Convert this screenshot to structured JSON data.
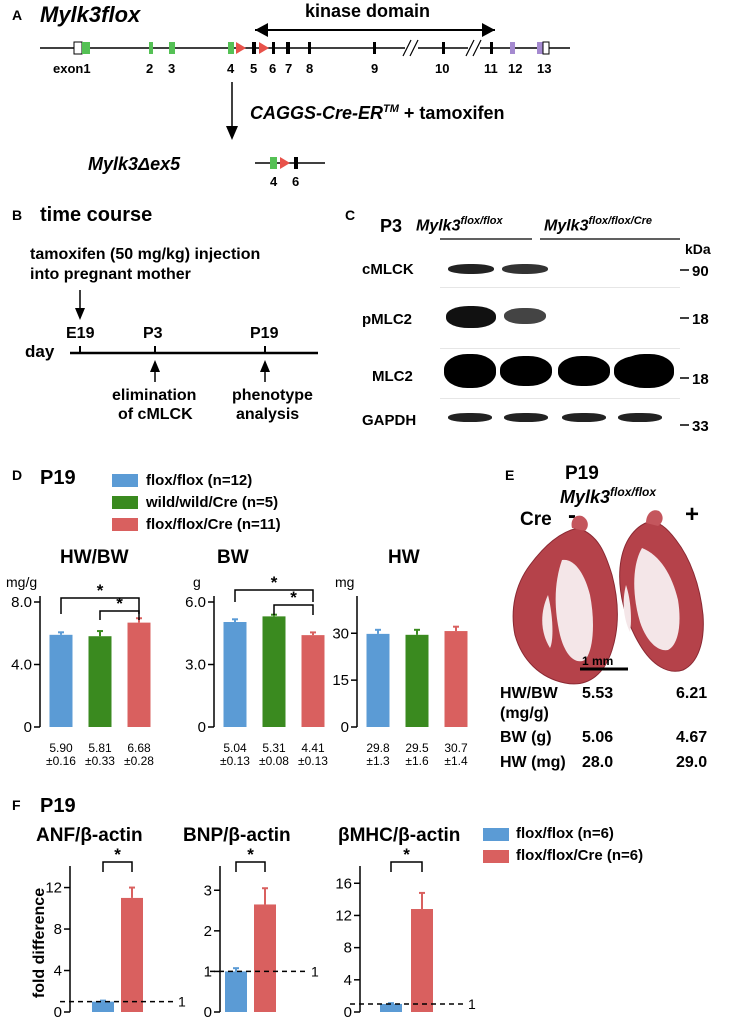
{
  "colors": {
    "flox_flox": "#5b9bd5",
    "wild_wild_cre": "#3a8a1f",
    "flox_flox_cre": "#d9605f",
    "exon_green": "#55c155",
    "exon_purple": "#a58ad0",
    "loxp_red": "#e8524a"
  },
  "panelA": {
    "label": "A",
    "title": "Mylk3flox",
    "domain_label": "kinase domain",
    "exon1_label": "exon1",
    "exon_numbers": [
      "2",
      "3",
      "4",
      "5",
      "6",
      "7",
      "8",
      "9",
      "10",
      "11",
      "12",
      "13"
    ],
    "cre_text": "CAGGS-Cre-ER",
    "cre_sup": "TM",
    "plus_text": "+  tamoxifen",
    "result_title": "Mylk3Δex5",
    "result_exons": [
      "4",
      "6"
    ]
  },
  "panelB": {
    "label": "B",
    "title": "time course",
    "injection_line1": "tamoxifen (50 mg/kg) injection",
    "injection_line2": "into pregnant mother",
    "axis_label": "day",
    "timepoints": [
      "E19",
      "P3",
      "P19"
    ],
    "event1_line1": "elimination",
    "event1_line2": "of cMLCK",
    "event2_line1": "phenotype",
    "event2_line2": "analysis"
  },
  "panelC": {
    "label": "C",
    "stage": "P3",
    "group1_base": "Mylk3",
    "group1_sup": "flox/flox",
    "group2_base": "Mylk3",
    "group2_sup": "flox/flox/Cre",
    "unit": "kDa",
    "rows": [
      {
        "name": "cMLCK",
        "kda": "90"
      },
      {
        "name": "pMLC2",
        "kda": "18"
      },
      {
        "name": "MLC2",
        "kda": "18"
      },
      {
        "name": "GAPDH",
        "kda": "33"
      }
    ]
  },
  "panelD": {
    "label": "D",
    "stage": "P19",
    "legend": [
      "flox/flox (n=12)",
      "wild/wild/Cre (n=5)",
      "flox/flox/Cre (n=11)"
    ],
    "stars": "*",
    "stat_lines": {
      "hwbw": [
        "5.90\n±0.16",
        "5.81\n±0.33",
        "6.68\n±0.28"
      ],
      "bw": [
        "5.04\n±0.13",
        "5.31\n±0.08",
        "4.41\n±0.13"
      ],
      "hw": [
        "29.8\n±1.3",
        "29.5\n±1.6",
        "30.7\n±1.4"
      ]
    }
  },
  "panelE": {
    "label": "E",
    "stage": "P19",
    "genotype_base": "Mylk3",
    "genotype_sup": "flox/flox",
    "cre_label": "Cre",
    "minus": "-",
    "plus": "+",
    "scale_bar": "1 mm",
    "table": [
      {
        "metric": "HW/BW",
        "minus": "5.53",
        "plus": "6.21"
      },
      {
        "metric": "(mg/g)",
        "minus": "",
        "plus": ""
      },
      {
        "metric": "BW (g)",
        "minus": "5.06",
        "plus": "4.67"
      },
      {
        "metric": "HW (mg)",
        "minus": "28.0",
        "plus": "29.0"
      }
    ]
  },
  "panelF": {
    "label": "F",
    "stage": "P19",
    "y_label": "fold difference",
    "legend": [
      "flox/flox (n=6)",
      "flox/flox/Cre (n=6)"
    ],
    "ref_label": "1"
  },
  "chart_data": [
    {
      "type": "bar",
      "title": "HW/BW",
      "ylabel": "mg/g",
      "categories": [
        "flox/flox",
        "wild/wild/Cre",
        "flox/flox/Cre"
      ],
      "values": [
        5.9,
        5.81,
        6.68
      ],
      "errors": [
        0.16,
        0.33,
        0.28
      ],
      "ylim": [
        0,
        8
      ],
      "yticks": [
        "8.0",
        "4.0",
        "0"
      ],
      "significance": [
        [
          0,
          2
        ],
        [
          1,
          2
        ]
      ]
    },
    {
      "type": "bar",
      "title": "BW",
      "ylabel": "g",
      "categories": [
        "flox/flox",
        "wild/wild/Cre",
        "flox/flox/Cre"
      ],
      "values": [
        5.04,
        5.31,
        4.41
      ],
      "errors": [
        0.13,
        0.08,
        0.13
      ],
      "ylim": [
        0,
        6
      ],
      "yticks": [
        "6.0",
        "3.0",
        "0"
      ],
      "significance": [
        [
          0,
          2
        ],
        [
          1,
          2
        ]
      ]
    },
    {
      "type": "bar",
      "title": "HW",
      "ylabel": "mg",
      "categories": [
        "flox/flox",
        "wild/wild/Cre",
        "flox/flox/Cre"
      ],
      "values": [
        29.8,
        29.5,
        30.7
      ],
      "errors": [
        1.3,
        1.6,
        1.4
      ],
      "ylim": [
        0,
        40
      ],
      "yticks": [
        "30",
        "15",
        "0"
      ],
      "significance": []
    },
    {
      "type": "bar",
      "title": "ANF/β-actin",
      "categories": [
        "flox/flox",
        "flox/flox/Cre"
      ],
      "values": [
        1.0,
        11.0
      ],
      "errors": [
        0.1,
        1.0
      ],
      "ylim": [
        0,
        13.5
      ],
      "yticks": [
        "12",
        "8",
        "4",
        "0"
      ],
      "significance": [
        [
          0,
          1
        ]
      ]
    },
    {
      "type": "bar",
      "title": "BNP/β-actin",
      "categories": [
        "flox/flox",
        "flox/flox/Cre"
      ],
      "values": [
        1.0,
        2.65
      ],
      "errors": [
        0.08,
        0.4
      ],
      "ylim": [
        0,
        3.45
      ],
      "yticks": [
        "3",
        "2",
        "1",
        "0"
      ],
      "significance": [
        [
          0,
          1
        ]
      ]
    },
    {
      "type": "bar",
      "title": "βMHC/β-actin",
      "categories": [
        "flox/flox",
        "flox/flox/Cre"
      ],
      "values": [
        1.0,
        12.8
      ],
      "errors": [
        0.1,
        2.0
      ],
      "ylim": [
        0,
        17.4
      ],
      "yticks": [
        "16",
        "12",
        "8",
        "4",
        "0"
      ],
      "significance": [
        [
          0,
          1
        ]
      ]
    }
  ]
}
